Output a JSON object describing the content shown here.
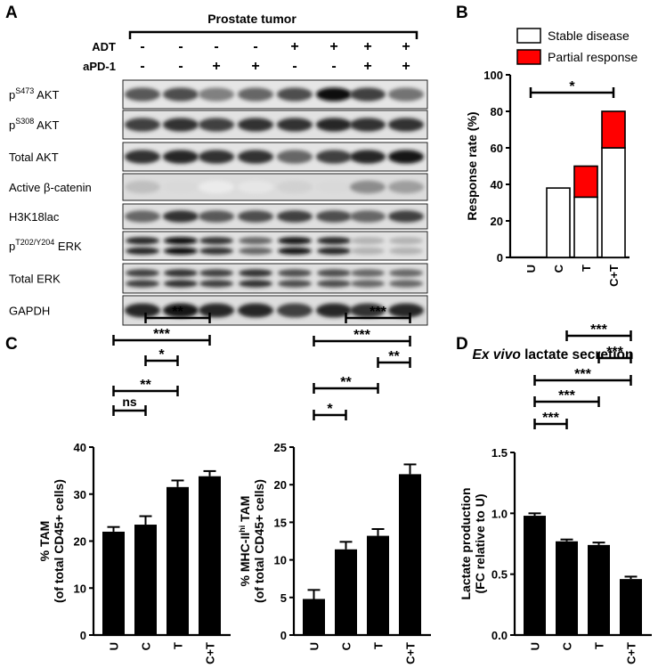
{
  "panels": {
    "A": "A",
    "B": "B",
    "C": "C",
    "D": "D"
  },
  "panel_a": {
    "header": "Prostate tumor",
    "adt_label": "ADT",
    "apd1_label": "aPD-1",
    "adt_signs": [
      "-",
      "-",
      "-",
      "-",
      "+",
      "+",
      "+",
      "+"
    ],
    "apd1_signs": [
      "-",
      "-",
      "+",
      "+",
      "-",
      "-",
      "+",
      "+"
    ],
    "blots": [
      {
        "label_sup_pre": "p",
        "sup": "S473",
        "label_rest": " AKT"
      },
      {
        "label_sup_pre": "p",
        "sup": "S308",
        "label_rest": " AKT"
      },
      {
        "label": "Total AKT"
      },
      {
        "label": "Active β-catenin"
      },
      {
        "label": "H3K18lac"
      },
      {
        "label_sup_pre": "p",
        "sup": "T202/Y204",
        "label_rest": " ERK"
      },
      {
        "label": "Total ERK"
      },
      {
        "label": "GAPDH"
      }
    ]
  },
  "chart_data": [
    {
      "panel": "B",
      "type": "bar",
      "stacked": true,
      "categories": [
        "U",
        "C",
        "T",
        "C+T"
      ],
      "series": [
        {
          "name": "Stable disease",
          "values": [
            0,
            38,
            33,
            60
          ],
          "color": "#ffffff"
        },
        {
          "name": "Partial response",
          "values": [
            0,
            0,
            17,
            20
          ],
          "color": "#ff0000"
        }
      ],
      "ylabel": "Response rate (%)",
      "ylim": [
        0,
        100
      ],
      "yticks": [
        0,
        20,
        40,
        60,
        80,
        100
      ],
      "legend": "top",
      "significance": [
        {
          "from": "U",
          "to": "C+T",
          "label": "*"
        }
      ]
    },
    {
      "panel": "C-left",
      "type": "bar",
      "categories": [
        "U",
        "C",
        "T",
        "C+T"
      ],
      "values": [
        22,
        23.5,
        31.5,
        33.8
      ],
      "errors": [
        1.0,
        1.8,
        1.4,
        1.1
      ],
      "ylabel": "% TAM",
      "ylabel2": "(of total CD45+ cells)",
      "ylim": [
        0,
        40
      ],
      "yticks": [
        0,
        10,
        20,
        30,
        40
      ],
      "significance": [
        {
          "from": "U",
          "to": "C",
          "label": "ns"
        },
        {
          "from": "U",
          "to": "T",
          "label": "**"
        },
        {
          "from": "C",
          "to": "T",
          "label": "*"
        },
        {
          "from": "U",
          "to": "C+T",
          "label": "***"
        },
        {
          "from": "C",
          "to": "C+T",
          "label": "**"
        }
      ]
    },
    {
      "panel": "C-right",
      "type": "bar",
      "categories": [
        "U",
        "C",
        "T",
        "C+T"
      ],
      "values": [
        4.8,
        11.4,
        13.2,
        21.4
      ],
      "errors": [
        1.2,
        1.0,
        0.9,
        1.3
      ],
      "ylabel_pre": "% MHC-II",
      "ylabel_sup": "hi",
      "ylabel_post": " TAM",
      "ylabel2": "(of total CD45+ cells)",
      "ylim": [
        0,
        25
      ],
      "yticks": [
        0,
        5,
        10,
        15,
        20,
        25
      ],
      "significance": [
        {
          "from": "U",
          "to": "C",
          "label": "*"
        },
        {
          "from": "U",
          "to": "T",
          "label": "**"
        },
        {
          "from": "T",
          "to": "C+T",
          "label": "**"
        },
        {
          "from": "U",
          "to": "C+T",
          "label": "***"
        },
        {
          "from": "C",
          "to": "C+T",
          "label": "***"
        }
      ]
    },
    {
      "panel": "D",
      "type": "bar",
      "title_italic": "Ex vivo",
      "title_rest": " lactate secretion",
      "categories": [
        "U",
        "C",
        "T",
        "C+T"
      ],
      "values": [
        0.98,
        0.77,
        0.74,
        0.46
      ],
      "errors": [
        0.02,
        0.015,
        0.02,
        0.02
      ],
      "ylabel": "Lactate production",
      "ylabel2": "(FC relative to U)",
      "ylim": [
        0,
        1.5
      ],
      "yticks": [
        "0.0",
        "0.5",
        "1.0",
        "1.5"
      ],
      "significance": [
        {
          "from": "U",
          "to": "C",
          "label": "***"
        },
        {
          "from": "U",
          "to": "T",
          "label": "***"
        },
        {
          "from": "U",
          "to": "C+T",
          "label": "***"
        },
        {
          "from": "T",
          "to": "C+T",
          "label": "***"
        },
        {
          "from": "C",
          "to": "C+T",
          "label": "***"
        }
      ]
    }
  ]
}
